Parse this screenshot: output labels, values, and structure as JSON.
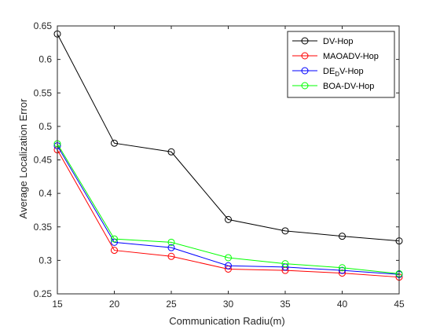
{
  "chart_data": {
    "type": "line",
    "title": "",
    "xlabel": "Communication Radiu(m)",
    "ylabel": "Average Localization Error",
    "x": [
      15,
      20,
      25,
      30,
      35,
      40,
      45
    ],
    "xlim": [
      15,
      45
    ],
    "ylim": [
      0.25,
      0.65
    ],
    "xticks": [
      "15",
      "20",
      "25",
      "30",
      "35",
      "40",
      "45"
    ],
    "yticks": [
      "0.25",
      "0.3",
      "0.35",
      "0.4",
      "0.45",
      "0.5",
      "0.55",
      "0.6",
      "0.65"
    ],
    "grid": false,
    "legend_position": "top-right",
    "series": [
      {
        "name": "DV-Hop",
        "name_main": "DV-Hop",
        "color": "#000000",
        "marker": "circle",
        "values": [
          0.638,
          0.475,
          0.462,
          0.361,
          0.344,
          0.336,
          0.329
        ]
      },
      {
        "name": "MAOADV-Hop",
        "name_main": "MAOADV-Hop",
        "color": "#ff0000",
        "marker": "circle",
        "values": [
          0.465,
          0.315,
          0.306,
          0.287,
          0.285,
          0.281,
          0.275
        ]
      },
      {
        "name": "DEDV-Hop",
        "name_main": "DE",
        "name_sub": "D",
        "name_rest": "V-Hop",
        "color": "#0000ff",
        "marker": "circle",
        "values": [
          0.471,
          0.327,
          0.319,
          0.292,
          0.29,
          0.285,
          0.279
        ]
      },
      {
        "name": "BOA-DV-Hop",
        "name_main": "BOA-DV-Hop",
        "color": "#00ff00",
        "marker": "circle",
        "values": [
          0.474,
          0.332,
          0.327,
          0.304,
          0.295,
          0.289,
          0.28
        ]
      }
    ]
  }
}
